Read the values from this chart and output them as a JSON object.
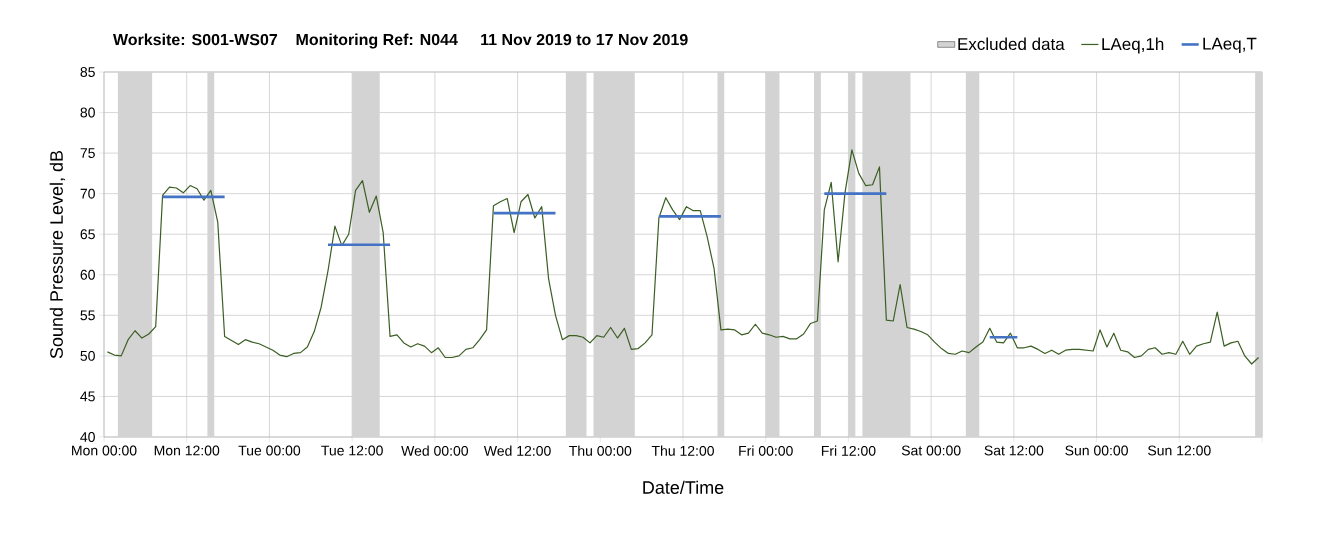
{
  "chart_data": {
    "type": "line",
    "title": "Worksite: S001-WS07    Monitoring Ref: N044     11 Nov 2019 to 17 Nov 2019",
    "xlabel": "Date/Time",
    "ylabel": "Sound Pressure Level, dB",
    "x": [
      "2019-11-11T00:30",
      "2019-11-11T01:30",
      "2019-11-11T02:30",
      "2019-11-11T03:30",
      "2019-11-11T04:30",
      "2019-11-11T05:30",
      "2019-11-11T06:30",
      "2019-11-11T07:30",
      "2019-11-11T08:30",
      "2019-11-11T09:30",
      "2019-11-11T10:30",
      "2019-11-11T11:30",
      "2019-11-11T12:30",
      "2019-11-11T13:30",
      "2019-11-11T14:30",
      "2019-11-11T15:30",
      "2019-11-11T16:30",
      "2019-11-11T17:30",
      "2019-11-11T18:30",
      "2019-11-11T19:30",
      "2019-11-11T20:30",
      "2019-11-11T21:30",
      "2019-11-11T22:30",
      "2019-11-11T23:30",
      "2019-11-12T00:30",
      "2019-11-12T01:30",
      "2019-11-12T02:30",
      "2019-11-12T03:30",
      "2019-11-12T04:30",
      "2019-11-12T05:30",
      "2019-11-12T06:30",
      "2019-11-12T07:30",
      "2019-11-12T08:30",
      "2019-11-12T09:30",
      "2019-11-12T10:30",
      "2019-11-12T11:30",
      "2019-11-12T12:30",
      "2019-11-12T13:30",
      "2019-11-12T14:30",
      "2019-11-12T15:30",
      "2019-11-12T16:30",
      "2019-11-12T17:30",
      "2019-11-12T18:30",
      "2019-11-12T19:30",
      "2019-11-12T20:30",
      "2019-11-12T21:30",
      "2019-11-12T22:30",
      "2019-11-12T23:30",
      "2019-11-13T00:30",
      "2019-11-13T01:30",
      "2019-11-13T02:30",
      "2019-11-13T03:30",
      "2019-11-13T04:30",
      "2019-11-13T05:30",
      "2019-11-13T06:30",
      "2019-11-13T07:30",
      "2019-11-13T08:30",
      "2019-11-13T09:30",
      "2019-11-13T10:30",
      "2019-11-13T11:30",
      "2019-11-13T12:30",
      "2019-11-13T13:30",
      "2019-11-13T14:30",
      "2019-11-13T15:30",
      "2019-11-13T16:30",
      "2019-11-13T17:30",
      "2019-11-13T18:30",
      "2019-11-13T19:30",
      "2019-11-13T20:30",
      "2019-11-13T21:30",
      "2019-11-13T22:30",
      "2019-11-13T23:30",
      "2019-11-14T00:30",
      "2019-11-14T01:30",
      "2019-11-14T02:30",
      "2019-11-14T03:30",
      "2019-11-14T04:30",
      "2019-11-14T05:30",
      "2019-11-14T06:30",
      "2019-11-14T07:30",
      "2019-11-14T08:30",
      "2019-11-14T09:30",
      "2019-11-14T10:30",
      "2019-11-14T11:30",
      "2019-11-14T12:30",
      "2019-11-14T13:30",
      "2019-11-14T14:30",
      "2019-11-14T15:30",
      "2019-11-14T16:30",
      "2019-11-14T17:30",
      "2019-11-14T18:30",
      "2019-11-14T19:30",
      "2019-11-14T20:30",
      "2019-11-14T21:30",
      "2019-11-14T22:30",
      "2019-11-14T23:30",
      "2019-11-15T00:30",
      "2019-11-15T01:30",
      "2019-11-15T02:30",
      "2019-11-15T03:30",
      "2019-11-15T04:30",
      "2019-11-15T05:30",
      "2019-11-15T06:30",
      "2019-11-15T07:30",
      "2019-11-15T08:30",
      "2019-11-15T09:30",
      "2019-11-15T10:30",
      "2019-11-15T11:30",
      "2019-11-15T12:30",
      "2019-11-15T13:30",
      "2019-11-15T14:30",
      "2019-11-15T15:30",
      "2019-11-15T16:30",
      "2019-11-15T17:30",
      "2019-11-15T18:30",
      "2019-11-15T19:30",
      "2019-11-15T20:30",
      "2019-11-15T21:30",
      "2019-11-15T22:30",
      "2019-11-15T23:30",
      "2019-11-16T00:30",
      "2019-11-16T01:30",
      "2019-11-16T02:30",
      "2019-11-16T03:30",
      "2019-11-16T04:30",
      "2019-11-16T05:30",
      "2019-11-16T06:30",
      "2019-11-16T07:30",
      "2019-11-16T08:30",
      "2019-11-16T09:30",
      "2019-11-16T10:30",
      "2019-11-16T11:30",
      "2019-11-16T12:30",
      "2019-11-16T13:30",
      "2019-11-16T14:30",
      "2019-11-16T15:30",
      "2019-11-16T16:30",
      "2019-11-16T17:30",
      "2019-11-16T18:30",
      "2019-11-16T19:30",
      "2019-11-16T20:30",
      "2019-11-16T21:30",
      "2019-11-16T22:30",
      "2019-11-16T23:30",
      "2019-11-17T00:30",
      "2019-11-17T01:30",
      "2019-11-17T02:30",
      "2019-11-17T03:30",
      "2019-11-17T04:30",
      "2019-11-17T05:30",
      "2019-11-17T06:30",
      "2019-11-17T07:30",
      "2019-11-17T08:30",
      "2019-11-17T09:30",
      "2019-11-17T10:30",
      "2019-11-17T11:30",
      "2019-11-17T12:30",
      "2019-11-17T13:30",
      "2019-11-17T14:30",
      "2019-11-17T15:30",
      "2019-11-17T16:30",
      "2019-11-17T17:30",
      "2019-11-17T18:30",
      "2019-11-17T19:30",
      "2019-11-17T20:30",
      "2019-11-17T21:30",
      "2019-11-17T22:30",
      "2019-11-17T23:30"
    ],
    "series": [
      {
        "name": "LAeq,1h",
        "color": "#3b5e23",
        "values": [
          50.5,
          50.1,
          50.0,
          52.0,
          53.1,
          52.2,
          52.7,
          53.6,
          69.8,
          70.8,
          70.7,
          70.1,
          71.0,
          70.6,
          69.2,
          70.4,
          66.5,
          52.4,
          51.9,
          51.4,
          52.0,
          51.7,
          51.5,
          51.1,
          50.7,
          50.1,
          49.9,
          50.3,
          50.4,
          51.1,
          53.0,
          56.0,
          60.5,
          66.0,
          63.6,
          65.0,
          70.4,
          71.6,
          67.7,
          69.7,
          65.2,
          52.4,
          52.6,
          51.6,
          51.1,
          51.5,
          51.2,
          50.4,
          51.0,
          49.8,
          49.8,
          50.0,
          50.8,
          51.0,
          52.0,
          53.2,
          68.5,
          69.0,
          69.4,
          65.2,
          69.0,
          69.9,
          67.0,
          68.4,
          59.5,
          55.0,
          52.0,
          52.5,
          52.5,
          52.3,
          51.6,
          52.5,
          52.3,
          53.5,
          52.2,
          53.4,
          50.8,
          50.9,
          51.6,
          52.6,
          67.0,
          69.5,
          68.0,
          66.8,
          68.4,
          67.9,
          67.9,
          64.7,
          60.8,
          53.2,
          53.3,
          53.2,
          52.6,
          52.8,
          53.9,
          52.8,
          52.6,
          52.3,
          52.4,
          52.1,
          52.1,
          52.7,
          54.0,
          54.3,
          68.0,
          71.4,
          61.6,
          70.1,
          75.4,
          72.5,
          71.0,
          71.1,
          73.3,
          54.4,
          54.3,
          58.8,
          53.5,
          53.3,
          53.0,
          52.6,
          51.7,
          50.9,
          50.3,
          50.2,
          50.6,
          50.4,
          51.1,
          51.7,
          53.4,
          51.7,
          51.6,
          52.8,
          51.0,
          51.0,
          51.2,
          50.8,
          50.3,
          50.7,
          50.2,
          50.7,
          50.8,
          50.8,
          50.7,
          50.6,
          53.2,
          51.1,
          52.8,
          50.7,
          50.5,
          49.8,
          50.0,
          50.8,
          51.0,
          50.2,
          50.4,
          50.2,
          51.8,
          50.2,
          51.2,
          51.5,
          51.7,
          55.4,
          51.2,
          51.6,
          51.8,
          50.0,
          49.0,
          49.8
        ]
      },
      {
        "name": "LAeq,T",
        "color": "#4472c4",
        "x": [
          "2019-11-11T08:30",
          "2019-11-11T17:30",
          "2019-11-12T01:00",
          "2019-11-12T08:30",
          "2019-11-12T17:30",
          "2019-11-13T01:00",
          "2019-11-13T08:30",
          "2019-11-13T17:30",
          "2019-11-14T01:00",
          "2019-11-14T08:30",
          "2019-11-14T17:30",
          "2019-11-15T01:00",
          "2019-11-15T08:30",
          "2019-11-15T17:30",
          "2019-11-16T01:00",
          "2019-11-16T08:30",
          "2019-11-16T12:30"
        ],
        "values": [
          69.6,
          69.6,
          null,
          63.7,
          63.7,
          null,
          67.6,
          67.6,
          null,
          67.2,
          67.2,
          null,
          70.0,
          70.0,
          null,
          52.3,
          52.3
        ]
      }
    ],
    "bands": [
      {
        "axis": "x",
        "from": "2019-11-11T02:00",
        "to": "2019-11-11T07:00",
        "label": "Excluded data",
        "color": "#d3d3d3"
      },
      {
        "axis": "x",
        "from": "2019-11-11T15:00",
        "to": "2019-11-11T16:00",
        "color": "#d3d3d3"
      },
      {
        "axis": "x",
        "from": "2019-11-12T12:00",
        "to": "2019-11-12T16:00",
        "color": "#d3d3d3"
      },
      {
        "axis": "x",
        "from": "2019-11-13T19:00",
        "to": "2019-11-13T22:00",
        "color": "#d3d3d3"
      },
      {
        "axis": "x",
        "from": "2019-11-13T23:00",
        "to": "2019-11-14T05:00",
        "color": "#d3d3d3"
      },
      {
        "axis": "x",
        "from": "2019-11-14T17:00",
        "to": "2019-11-14T18:00",
        "color": "#d3d3d3"
      },
      {
        "axis": "x",
        "from": "2019-11-15T00:00",
        "to": "2019-11-15T02:00",
        "color": "#d3d3d3"
      },
      {
        "axis": "x",
        "from": "2019-11-15T07:00",
        "to": "2019-11-15T08:00",
        "color": "#d3d3d3"
      },
      {
        "axis": "x",
        "from": "2019-11-15T12:00",
        "to": "2019-11-15T13:00",
        "color": "#d3d3d3"
      },
      {
        "axis": "x",
        "from": "2019-11-15T14:00",
        "to": "2019-11-15T21:00",
        "color": "#d3d3d3"
      },
      {
        "axis": "x",
        "from": "2019-11-16T05:00",
        "to": "2019-11-16T07:00",
        "color": "#d3d3d3"
      },
      {
        "axis": "x",
        "from": "2019-11-17T23:00",
        "to": "2019-11-18T00:00",
        "color": "#d3d3d3"
      }
    ],
    "xlim": [
      "2019-11-11T00:00",
      "2019-11-18T00:00"
    ],
    "ylim": [
      40,
      85
    ],
    "xticks": [
      {
        "value": "2019-11-11T00:00",
        "label": "Mon 00:00"
      },
      {
        "value": "2019-11-11T12:00",
        "label": "Mon 12:00"
      },
      {
        "value": "2019-11-12T00:00",
        "label": "Tue 00:00"
      },
      {
        "value": "2019-11-12T12:00",
        "label": "Tue 12:00"
      },
      {
        "value": "2019-11-13T00:00",
        "label": "Wed 00:00"
      },
      {
        "value": "2019-11-13T12:00",
        "label": "Wed 12:00"
      },
      {
        "value": "2019-11-14T00:00",
        "label": "Thu 00:00"
      },
      {
        "value": "2019-11-14T12:00",
        "label": "Thu 12:00"
      },
      {
        "value": "2019-11-15T00:00",
        "label": "Fri 00:00"
      },
      {
        "value": "2019-11-15T12:00",
        "label": "Fri 12:00"
      },
      {
        "value": "2019-11-16T00:00",
        "label": "Sat 00:00"
      },
      {
        "value": "2019-11-16T12:00",
        "label": "Sat 12:00"
      },
      {
        "value": "2019-11-17T00:00",
        "label": "Sun 00:00"
      },
      {
        "value": "2019-11-17T12:00",
        "label": "Sun 12:00"
      },
      {
        "value": "2019-11-18T00:00",
        "label": null
      }
    ],
    "yticks": [
      40,
      45,
      50,
      55,
      60,
      65,
      70,
      75,
      80,
      85
    ],
    "grid": true,
    "legend": "top right",
    "marker": "none",
    "line_style": "solid"
  }
}
